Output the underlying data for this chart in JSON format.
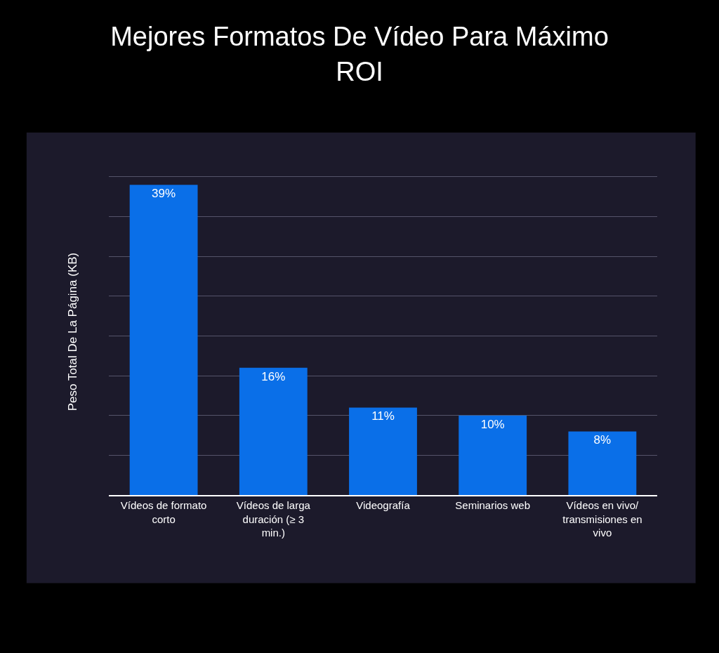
{
  "chart_data": {
    "type": "bar",
    "title": "Mejores Formatos De Vídeo Para Máximo ROI",
    "ylabel": "Peso Total De La Página (KB)",
    "categories": [
      "Vídeos de formato corto",
      "Vídeos de larga duración (≥ 3 min.)",
      "Videografía",
      "Seminarios web",
      "Vídeos en vivo/ transmisiones en vivo"
    ],
    "values": [
      39,
      16,
      11,
      10,
      8
    ],
    "color": "#0a6fe8",
    "value_labels": [
      "39%",
      "16%",
      "11%",
      "10%",
      "8%"
    ],
    "tick_labels": "x",
    "grid": "y",
    "legend": false
  }
}
